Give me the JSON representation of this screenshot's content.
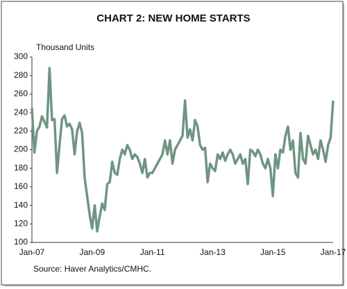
{
  "chart_data": {
    "type": "line",
    "title": "CHART 2: NEW HOME STARTS",
    "y_label": "Thousand Units",
    "source": "Source: Haver Analytics/CMHC.",
    "categories": [
      "Jan-07",
      null,
      null,
      null,
      null,
      null,
      null,
      null,
      null,
      null,
      null,
      null,
      null,
      null,
      null,
      null,
      null,
      null,
      null,
      null,
      null,
      null,
      null,
      null,
      "Jan-09",
      null,
      null,
      null,
      null,
      null,
      null,
      null,
      null,
      null,
      null,
      null,
      null,
      null,
      null,
      null,
      null,
      null,
      null,
      null,
      null,
      null,
      null,
      null,
      "Jan-11",
      null,
      null,
      null,
      null,
      null,
      null,
      null,
      null,
      null,
      null,
      null,
      null,
      null,
      null,
      null,
      null,
      null,
      null,
      null,
      null,
      null,
      null,
      null,
      "Jan-13",
      null,
      null,
      null,
      null,
      null,
      null,
      null,
      null,
      null,
      null,
      null,
      null,
      null,
      null,
      null,
      null,
      null,
      null,
      null,
      null,
      null,
      null,
      null,
      "Jan-15",
      null,
      null,
      null,
      null,
      null,
      null,
      null,
      null,
      null,
      null,
      null,
      null,
      null,
      null,
      null,
      null,
      null,
      null,
      null,
      null,
      null,
      null,
      null,
      "Jan-17"
    ],
    "series": [
      {
        "name": "New Home Starts",
        "color": "#6f9582",
        "values": [
          245,
          197,
          220,
          225,
          236,
          230,
          224,
          288,
          232,
          233,
          175,
          205,
          233,
          237,
          225,
          228,
          222,
          195,
          220,
          229,
          218,
          170,
          150,
          130,
          115,
          140,
          112,
          128,
          142,
          135,
          163,
          165,
          187,
          175,
          173,
          190,
          200,
          195,
          205,
          200,
          190,
          195,
          192,
          185,
          175,
          190,
          170,
          175,
          175,
          180,
          185,
          190,
          195,
          210,
          195,
          210,
          185,
          200,
          205,
          210,
          215,
          253,
          213,
          222,
          210,
          232,
          225,
          205,
          200,
          202,
          165,
          185,
          180,
          177,
          195,
          190,
          197,
          188,
          195,
          200,
          195,
          185,
          190,
          195,
          185,
          190,
          163,
          200,
          198,
          193,
          200,
          195,
          185,
          180,
          190,
          180,
          150,
          195,
          180,
          200,
          197,
          215,
          225,
          200,
          210,
          175,
          170,
          218,
          190,
          185,
          215,
          205,
          195,
          200,
          190,
          210,
          200,
          187,
          205,
          213,
          253
        ]
      }
    ],
    "ylim": [
      100,
      300
    ],
    "yticks": [
      100,
      120,
      140,
      160,
      180,
      200,
      220,
      240,
      260,
      280,
      300
    ]
  }
}
